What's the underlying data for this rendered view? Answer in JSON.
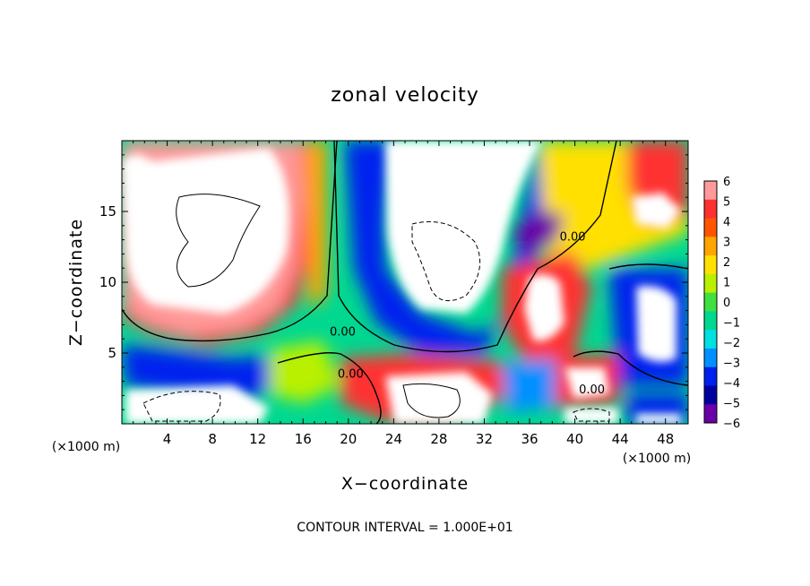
{
  "chart_data": {
    "type": "heatmap",
    "title": "zonal velocity",
    "xlabel": "X−coordinate",
    "ylabel": "Z−coordinate",
    "x_unit_left": "(×1000 m)",
    "x_unit_right": "(×1000 m)",
    "xlim": [
      0,
      50
    ],
    "ylim": [
      0,
      20
    ],
    "x_ticks": [
      4,
      8,
      12,
      16,
      20,
      24,
      28,
      32,
      36,
      40,
      44,
      48
    ],
    "x_tick_labels": [
      "4",
      "8",
      "12",
      "16",
      "20",
      "24",
      "28",
      "32",
      "36",
      "40",
      "44",
      "48"
    ],
    "y_ticks": [
      5,
      10,
      15
    ],
    "y_tick_labels": [
      "5",
      "10",
      "15"
    ],
    "footer": "CONTOUR INTERVAL = 1.000E+01",
    "colorbar": {
      "levels": [
        "6",
        "5",
        "4",
        "3",
        "2",
        "1",
        "0",
        "−1",
        "−2",
        "−3",
        "−4",
        "−5",
        "−6"
      ],
      "colors": [
        "#ff9a9a",
        "#ff3030",
        "#ff5500",
        "#ffa500",
        "#ffe000",
        "#b8f000",
        "#40e040",
        "#00d890",
        "#00e0e0",
        "#0090ff",
        "#0020ee",
        "#0000a0",
        "#6a00a8"
      ]
    },
    "contour_labels": [
      {
        "text": "0.00",
        "x": 19.5,
        "z": 6.5
      },
      {
        "text": "0.00",
        "x": 20.2,
        "z": 3.5
      },
      {
        "text": "0.00",
        "x": 39.8,
        "z": 13.2
      },
      {
        "text": "0.00",
        "x": 41.5,
        "z": 2.4
      }
    ]
  }
}
